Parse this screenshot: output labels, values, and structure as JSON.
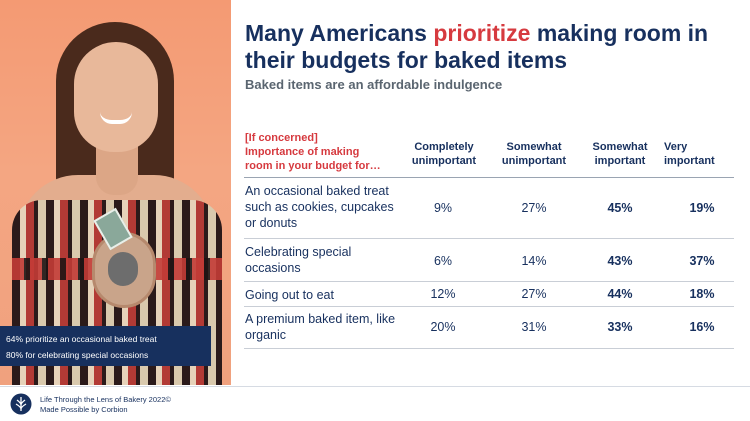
{
  "title": {
    "part1": "Many Americans ",
    "highlight": "prioritize",
    "part2": " making room in their budgets for baked items"
  },
  "subtitle": "Baked items are an affordable indulgence",
  "callout": {
    "line1": "64% prioritize an occasional baked treat",
    "line2": "80% for celebrating special occasions"
  },
  "table": {
    "question_line1": "[If concerned]",
    "question_line2": "Importance of making",
    "question_line3": "room in your budget for…",
    "headers": [
      {
        "line1": "Completely",
        "line2": "unimportant"
      },
      {
        "line1": "Somewhat",
        "line2": "unimportant"
      },
      {
        "line1": "Somewhat",
        "line2": "important"
      },
      {
        "line1": "Very",
        "line2": "important"
      }
    ],
    "rows": [
      {
        "label": "An occasional baked treat such as cookies, cupcakes or donuts",
        "values": [
          "9%",
          "27%",
          "45%",
          "19%"
        ]
      },
      {
        "label": "Celebrating special occasions",
        "values": [
          "6%",
          "14%",
          "43%",
          "37%"
        ]
      },
      {
        "label": "Going out to eat",
        "values": [
          "12%",
          "27%",
          "44%",
          "18%"
        ]
      },
      {
        "label": "A premium baked item, like organic",
        "values": [
          "20%",
          "31%",
          "33%",
          "16%"
        ]
      }
    ]
  },
  "footer": {
    "line1": "Life Through the Lens of Bakery 2022©",
    "line2": "Made Possible by Corbion"
  },
  "colors": {
    "navy": "#17305e",
    "accent": "#d63a3f",
    "photo_bg": "#f49a73"
  }
}
